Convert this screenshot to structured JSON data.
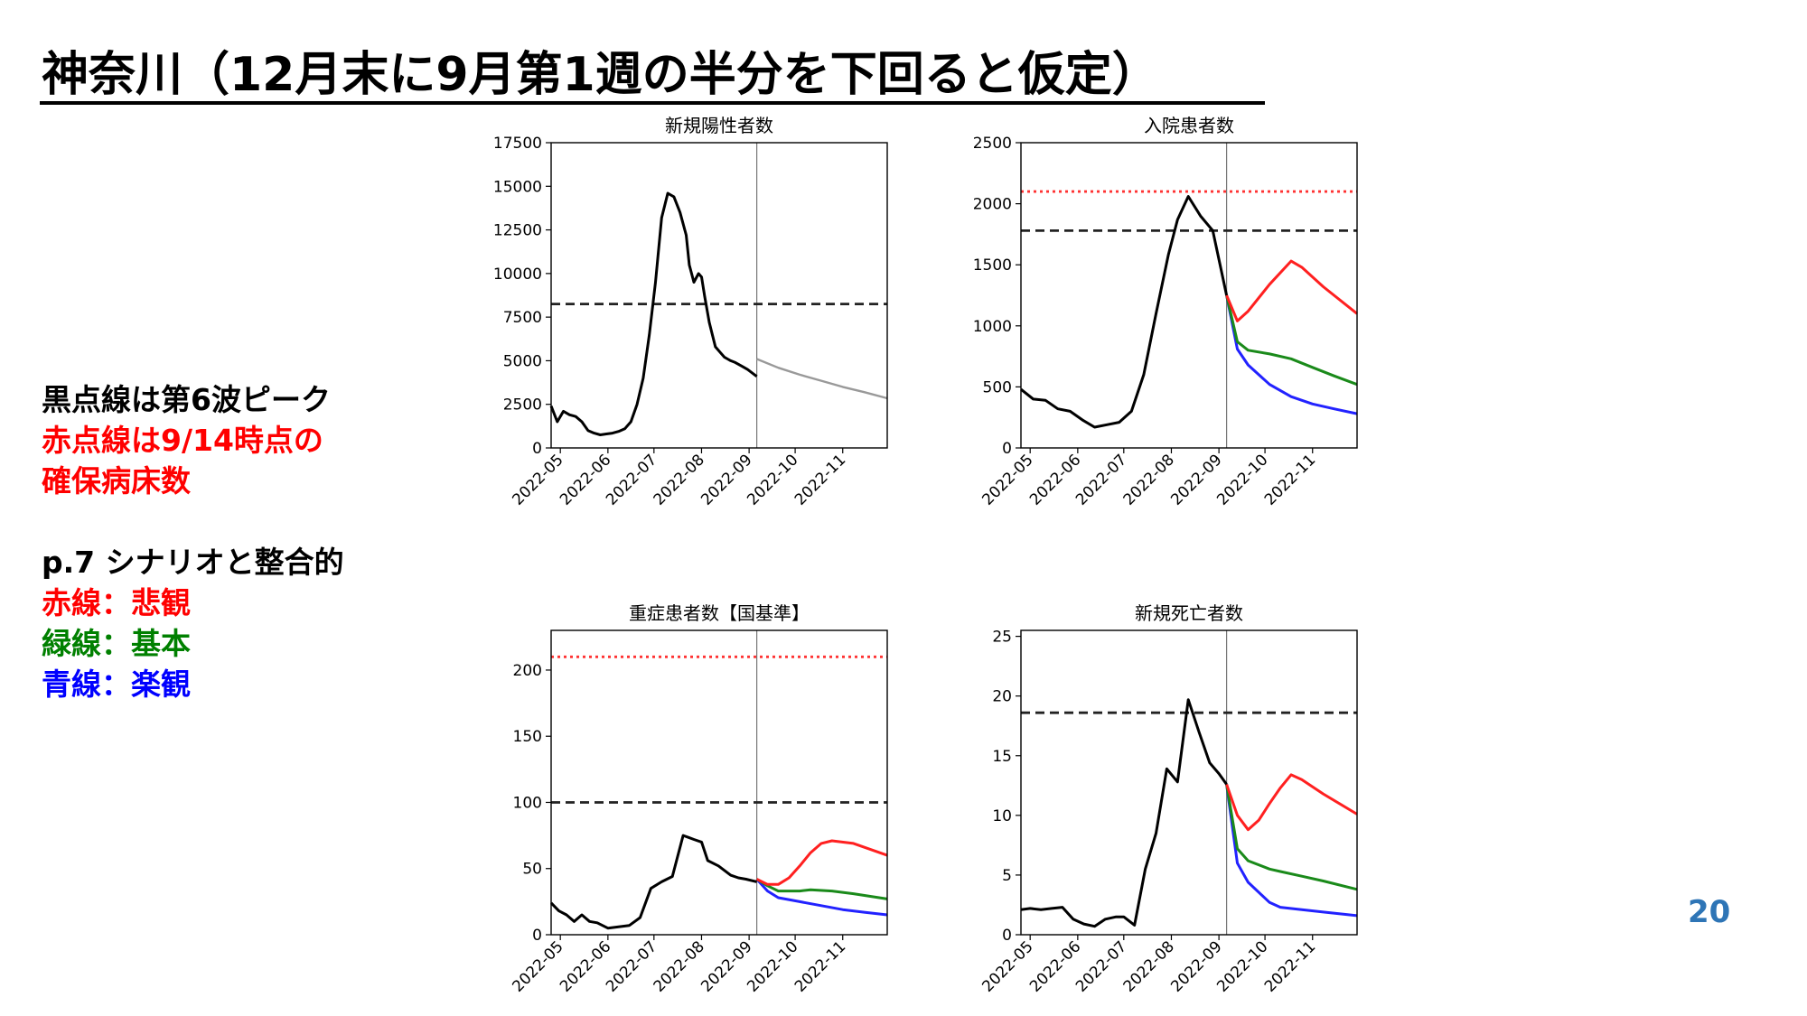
{
  "slide": {
    "title": "神奈川（12月末に9月第1週の半分を下回ると仮定）",
    "page_number": "20"
  },
  "notes": {
    "lines": [
      {
        "text": "黒点線は第6波ピーク",
        "color": "#000000"
      },
      {
        "text": "赤点線は9/14時点の",
        "color": "#ff0000"
      },
      {
        "text": "確保病床数",
        "color": "#ff0000"
      },
      {
        "text": "",
        "color": "#000000"
      },
      {
        "text": "p.7 シナリオと整合的",
        "color": "#000000"
      },
      {
        "text": "赤線：悲観",
        "color": "#ff0000"
      },
      {
        "text": "緑線：基本",
        "color": "#008000"
      },
      {
        "text": "青線：楽観",
        "color": "#0000ff"
      }
    ]
  },
  "colors": {
    "pessimistic": "#ff2020",
    "base": "#1a8a1a",
    "optimistic": "#2222ff",
    "actual": "#000000",
    "projection": "#999999",
    "peak_line": "#222222",
    "bed_line": "#ff3333"
  },
  "chart_data": [
    {
      "type": "line",
      "title": "新規陽性者数",
      "ylim": [
        0,
        17500
      ],
      "yticks": [
        0,
        2500,
        5000,
        7500,
        10000,
        12500,
        15000,
        17500
      ],
      "xlim": [
        "2022-04-25",
        "2022-11-30"
      ],
      "xticks": [
        "2022-05",
        "2022-06",
        "2022-07",
        "2022-08",
        "2022-09",
        "2022-10",
        "2022-11"
      ],
      "vline": "2022-09-06",
      "hlines": [
        {
          "kind": "peak",
          "y": 8250
        }
      ],
      "series": [
        {
          "kind": "actual",
          "x": [
            "2022-04-25",
            "2022-04-29",
            "2022-05-03",
            "2022-05-07",
            "2022-05-11",
            "2022-05-15",
            "2022-05-19",
            "2022-05-23",
            "2022-05-27",
            "2022-05-31",
            "2022-06-04",
            "2022-06-08",
            "2022-06-12",
            "2022-06-16",
            "2022-06-20",
            "2022-06-24",
            "2022-06-28",
            "2022-07-02",
            "2022-07-06",
            "2022-07-10",
            "2022-07-14",
            "2022-07-18",
            "2022-07-22",
            "2022-07-24",
            "2022-07-27",
            "2022-07-30",
            "2022-08-01",
            "2022-08-03",
            "2022-08-06",
            "2022-08-08",
            "2022-08-10",
            "2022-08-13",
            "2022-08-16",
            "2022-08-18",
            "2022-08-20",
            "2022-08-23",
            "2022-08-27",
            "2022-08-31",
            "2022-09-03",
            "2022-09-06"
          ],
          "y": [
            2400,
            1500,
            2100,
            1900,
            1800,
            1500,
            1000,
            850,
            750,
            800,
            850,
            950,
            1100,
            1500,
            2500,
            4000,
            6500,
            9500,
            13200,
            14600,
            14400,
            13500,
            12200,
            10500,
            9500,
            10000,
            9800,
            8700,
            7200,
            6500,
            5800,
            5500,
            5200,
            5100,
            5000,
            4900,
            4700,
            4500,
            4300,
            4100
          ]
        },
        {
          "kind": "projection",
          "x": [
            "2022-09-06",
            "2022-09-20",
            "2022-10-04",
            "2022-10-18",
            "2022-11-01",
            "2022-11-15",
            "2022-11-30"
          ],
          "y": [
            5100,
            4600,
            4200,
            3850,
            3500,
            3200,
            2850
          ]
        }
      ]
    },
    {
      "type": "line",
      "title": "入院患者数",
      "ylim": [
        0,
        2500
      ],
      "yticks": [
        0,
        500,
        1000,
        1500,
        2000,
        2500
      ],
      "xlim": [
        "2022-04-25",
        "2022-11-30"
      ],
      "xticks": [
        "2022-05",
        "2022-06",
        "2022-07",
        "2022-08",
        "2022-09",
        "2022-10",
        "2022-11"
      ],
      "vline": "2022-09-06",
      "hlines": [
        {
          "kind": "peak",
          "y": 1780
        },
        {
          "kind": "beds",
          "y": 2100
        }
      ],
      "series": [
        {
          "kind": "actual",
          "x": [
            "2022-04-25",
            "2022-05-03",
            "2022-05-11",
            "2022-05-19",
            "2022-05-27",
            "2022-06-04",
            "2022-06-12",
            "2022-06-20",
            "2022-06-28",
            "2022-07-06",
            "2022-07-14",
            "2022-07-22",
            "2022-07-30",
            "2022-08-05",
            "2022-08-12",
            "2022-08-20",
            "2022-08-28",
            "2022-09-06"
          ],
          "y": [
            480,
            400,
            390,
            320,
            300,
            230,
            170,
            190,
            210,
            300,
            600,
            1100,
            1580,
            1870,
            2060,
            1900,
            1780,
            1250
          ]
        },
        {
          "kind": "pessimistic",
          "x": [
            "2022-09-06",
            "2022-09-13",
            "2022-09-20",
            "2022-10-04",
            "2022-10-18",
            "2022-10-25",
            "2022-11-08",
            "2022-11-30"
          ],
          "y": [
            1250,
            1040,
            1120,
            1340,
            1530,
            1480,
            1320,
            1100
          ]
        },
        {
          "kind": "base",
          "x": [
            "2022-09-06",
            "2022-09-13",
            "2022-09-20",
            "2022-10-04",
            "2022-10-18",
            "2022-11-01",
            "2022-11-15",
            "2022-11-30"
          ],
          "y": [
            1250,
            870,
            800,
            770,
            730,
            660,
            590,
            520
          ]
        },
        {
          "kind": "optimistic",
          "x": [
            "2022-09-06",
            "2022-09-13",
            "2022-09-20",
            "2022-10-04",
            "2022-10-18",
            "2022-11-01",
            "2022-11-15",
            "2022-11-30"
          ],
          "y": [
            1250,
            810,
            680,
            520,
            420,
            360,
            320,
            280
          ]
        }
      ]
    },
    {
      "type": "line",
      "title": "重症患者数【国基準】",
      "ylim": [
        0,
        230
      ],
      "yticks": [
        0,
        50,
        100,
        150,
        200
      ],
      "xlim": [
        "2022-04-25",
        "2022-11-30"
      ],
      "xticks": [
        "2022-05",
        "2022-06",
        "2022-07",
        "2022-08",
        "2022-09",
        "2022-10",
        "2022-11"
      ],
      "vline": "2022-09-06",
      "hlines": [
        {
          "kind": "peak",
          "y": 100
        },
        {
          "kind": "beds",
          "y": 210
        }
      ],
      "series": [
        {
          "kind": "actual",
          "x": [
            "2022-04-25",
            "2022-04-30",
            "2022-05-05",
            "2022-05-10",
            "2022-05-15",
            "2022-05-20",
            "2022-05-25",
            "2022-06-01",
            "2022-06-08",
            "2022-06-15",
            "2022-06-22",
            "2022-06-29",
            "2022-07-06",
            "2022-07-13",
            "2022-07-20",
            "2022-07-27",
            "2022-08-01",
            "2022-08-05",
            "2022-08-12",
            "2022-08-20",
            "2022-08-25",
            "2022-08-30",
            "2022-09-06"
          ],
          "y": [
            24,
            18,
            15,
            10,
            15,
            10,
            9,
            5,
            6,
            7,
            13,
            35,
            40,
            44,
            75,
            72,
            70,
            56,
            52,
            45,
            43,
            42,
            40
          ]
        },
        {
          "kind": "pessimistic",
          "x": [
            "2022-09-06",
            "2022-09-13",
            "2022-09-20",
            "2022-09-27",
            "2022-10-04",
            "2022-10-11",
            "2022-10-18",
            "2022-10-25",
            "2022-11-08",
            "2022-11-30"
          ],
          "y": [
            42,
            38,
            38,
            43,
            52,
            62,
            69,
            71,
            69,
            60
          ]
        },
        {
          "kind": "base",
          "x": [
            "2022-09-06",
            "2022-09-13",
            "2022-09-20",
            "2022-10-04",
            "2022-10-11",
            "2022-10-25",
            "2022-11-08",
            "2022-11-30"
          ],
          "y": [
            42,
            37,
            33,
            33,
            34,
            33,
            31,
            27
          ]
        },
        {
          "kind": "optimistic",
          "x": [
            "2022-09-06",
            "2022-09-13",
            "2022-09-20",
            "2022-10-04",
            "2022-10-18",
            "2022-11-01",
            "2022-11-15",
            "2022-11-30"
          ],
          "y": [
            42,
            33,
            28,
            25,
            22,
            19,
            17,
            15
          ]
        }
      ]
    },
    {
      "type": "line",
      "title": "新規死亡者数",
      "ylim": [
        0,
        25.5
      ],
      "yticks": [
        0,
        5,
        10,
        15,
        20,
        25
      ],
      "xlim": [
        "2022-04-25",
        "2022-11-30"
      ],
      "xticks": [
        "2022-05",
        "2022-06",
        "2022-07",
        "2022-08",
        "2022-09",
        "2022-10",
        "2022-11"
      ],
      "vline": "2022-09-06",
      "hlines": [
        {
          "kind": "peak",
          "y": 18.6
        }
      ],
      "series": [
        {
          "kind": "actual",
          "x": [
            "2022-04-25",
            "2022-05-01",
            "2022-05-08",
            "2022-05-15",
            "2022-05-22",
            "2022-05-29",
            "2022-06-05",
            "2022-06-12",
            "2022-06-19",
            "2022-06-26",
            "2022-07-01",
            "2022-07-08",
            "2022-07-15",
            "2022-07-22",
            "2022-07-29",
            "2022-08-05",
            "2022-08-12",
            "2022-08-19",
            "2022-08-26",
            "2022-09-01",
            "2022-09-06"
          ],
          "y": [
            2.1,
            2.2,
            2.1,
            2.2,
            2.3,
            1.3,
            0.9,
            0.7,
            1.3,
            1.5,
            1.5,
            0.8,
            5.5,
            8.5,
            13.9,
            12.8,
            19.7,
            17.0,
            14.4,
            13.5,
            12.6
          ]
        },
        {
          "kind": "pessimistic",
          "x": [
            "2022-09-06",
            "2022-09-13",
            "2022-09-20",
            "2022-09-27",
            "2022-10-04",
            "2022-10-11",
            "2022-10-18",
            "2022-10-25",
            "2022-11-08",
            "2022-11-30"
          ],
          "y": [
            12.6,
            10.0,
            8.8,
            9.6,
            11.0,
            12.3,
            13.4,
            13.0,
            11.8,
            10.1
          ]
        },
        {
          "kind": "base",
          "x": [
            "2022-09-06",
            "2022-09-13",
            "2022-09-20",
            "2022-10-04",
            "2022-10-11",
            "2022-10-25",
            "2022-11-08",
            "2022-11-30"
          ],
          "y": [
            12.6,
            7.2,
            6.2,
            5.5,
            5.3,
            4.9,
            4.5,
            3.8
          ]
        },
        {
          "kind": "optimistic",
          "x": [
            "2022-09-06",
            "2022-09-13",
            "2022-09-20",
            "2022-10-04",
            "2022-10-11",
            "2022-10-25",
            "2022-11-08",
            "2022-11-30"
          ],
          "y": [
            12.6,
            6.0,
            4.4,
            2.7,
            2.3,
            2.1,
            1.9,
            1.6
          ]
        }
      ]
    }
  ]
}
